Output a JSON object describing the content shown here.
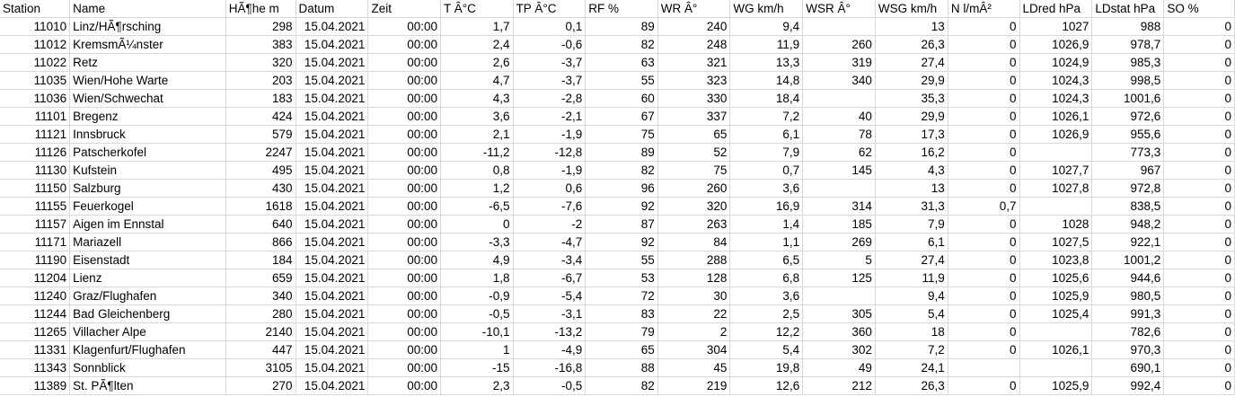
{
  "sheet": {
    "headers": [
      "Station",
      "Name",
      "HÃ¶he m",
      "Datum",
      "Zeit",
      "T Â°C",
      "TP Â°C",
      "RF %",
      "WR Â°",
      "WG km/h",
      "WSR Â°",
      "WSG km/h",
      "N l/mÂ²",
      "LDred hPa",
      "LDstat hPa",
      "SO %"
    ],
    "rows": [
      [
        "11010",
        "Linz/HÃ¶rsching",
        "298",
        "15.04.2021",
        "00:00",
        "1,7",
        "0,1",
        "89",
        "240",
        "9,4",
        "",
        "13",
        "0",
        "1027",
        "988",
        "0"
      ],
      [
        "11012",
        "KremsmÃ¼nster",
        "383",
        "15.04.2021",
        "00:00",
        "2,4",
        "-0,6",
        "82",
        "248",
        "11,9",
        "260",
        "26,3",
        "0",
        "1026,9",
        "978,7",
        "0"
      ],
      [
        "11022",
        "Retz",
        "320",
        "15.04.2021",
        "00:00",
        "2,6",
        "-3,7",
        "63",
        "321",
        "13,3",
        "319",
        "27,4",
        "0",
        "1024,9",
        "985,3",
        "0"
      ],
      [
        "11035",
        "Wien/Hohe Warte",
        "203",
        "15.04.2021",
        "00:00",
        "4,7",
        "-3,7",
        "55",
        "323",
        "14,8",
        "340",
        "29,9",
        "0",
        "1024,3",
        "998,5",
        "0"
      ],
      [
        "11036",
        "Wien/Schwechat",
        "183",
        "15.04.2021",
        "00:00",
        "4,3",
        "-2,8",
        "60",
        "330",
        "18,4",
        "",
        "35,3",
        "0",
        "1024,3",
        "1001,6",
        "0"
      ],
      [
        "11101",
        "Bregenz",
        "424",
        "15.04.2021",
        "00:00",
        "3,6",
        "-2,1",
        "67",
        "337",
        "7,2",
        "40",
        "29,9",
        "0",
        "1026,1",
        "972,6",
        "0"
      ],
      [
        "11121",
        "Innsbruck",
        "579",
        "15.04.2021",
        "00:00",
        "2,1",
        "-1,9",
        "75",
        "65",
        "6,1",
        "78",
        "17,3",
        "0",
        "1026,9",
        "955,6",
        "0"
      ],
      [
        "11126",
        "Patscherkofel",
        "2247",
        "15.04.2021",
        "00:00",
        "-11,2",
        "-12,8",
        "89",
        "52",
        "7,9",
        "62",
        "16,2",
        "0",
        "",
        "773,3",
        "0"
      ],
      [
        "11130",
        "Kufstein",
        "495",
        "15.04.2021",
        "00:00",
        "0,8",
        "-1,9",
        "82",
        "75",
        "0,7",
        "145",
        "4,3",
        "0",
        "1027,7",
        "967",
        "0"
      ],
      [
        "11150",
        "Salzburg",
        "430",
        "15.04.2021",
        "00:00",
        "1,2",
        "0,6",
        "96",
        "260",
        "3,6",
        "",
        "13",
        "0",
        "1027,8",
        "972,8",
        "0"
      ],
      [
        "11155",
        "Feuerkogel",
        "1618",
        "15.04.2021",
        "00:00",
        "-6,5",
        "-7,6",
        "92",
        "320",
        "16,9",
        "314",
        "31,3",
        "0,7",
        "",
        "838,5",
        "0"
      ],
      [
        "11157",
        "Aigen im Ennstal",
        "640",
        "15.04.2021",
        "00:00",
        "0",
        "-2",
        "87",
        "263",
        "1,4",
        "185",
        "7,9",
        "0",
        "1028",
        "948,2",
        "0"
      ],
      [
        "11171",
        "Mariazell",
        "866",
        "15.04.2021",
        "00:00",
        "-3,3",
        "-4,7",
        "92",
        "84",
        "1,1",
        "269",
        "6,1",
        "0",
        "1027,5",
        "922,1",
        "0"
      ],
      [
        "11190",
        "Eisenstadt",
        "184",
        "15.04.2021",
        "00:00",
        "4,9",
        "-3,4",
        "55",
        "288",
        "6,5",
        "5",
        "27,4",
        "0",
        "1023,8",
        "1001,2",
        "0"
      ],
      [
        "11204",
        "Lienz",
        "659",
        "15.04.2021",
        "00:00",
        "1,8",
        "-6,7",
        "53",
        "128",
        "6,8",
        "125",
        "11,9",
        "0",
        "1025,6",
        "944,6",
        "0"
      ],
      [
        "11240",
        "Graz/Flughafen",
        "340",
        "15.04.2021",
        "00:00",
        "-0,9",
        "-5,4",
        "72",
        "30",
        "3,6",
        "",
        "9,4",
        "0",
        "1025,9",
        "980,5",
        "0"
      ],
      [
        "11244",
        "Bad Gleichenberg",
        "280",
        "15.04.2021",
        "00:00",
        "-0,5",
        "-3,1",
        "83",
        "22",
        "2,5",
        "305",
        "5,4",
        "0",
        "1025,4",
        "991,3",
        "0"
      ],
      [
        "11265",
        "Villacher Alpe",
        "2140",
        "15.04.2021",
        "00:00",
        "-10,1",
        "-13,2",
        "79",
        "2",
        "12,2",
        "360",
        "18",
        "0",
        "",
        "782,6",
        "0"
      ],
      [
        "11331",
        "Klagenfurt/Flughafen",
        "447",
        "15.04.2021",
        "00:00",
        "1",
        "-4,9",
        "65",
        "304",
        "5,4",
        "302",
        "7,2",
        "0",
        "1026,1",
        "970,3",
        "0"
      ],
      [
        "11343",
        "Sonnblick",
        "3105",
        "15.04.2021",
        "00:00",
        "-15",
        "-16,8",
        "88",
        "45",
        "19,8",
        "49",
        "24,1",
        "",
        "",
        "690,1",
        "0"
      ],
      [
        "11389",
        "St. PÃ¶lten",
        "270",
        "15.04.2021",
        "00:00",
        "2,3",
        "-0,5",
        "82",
        "219",
        "12,6",
        "212",
        "26,3",
        "0",
        "1025,9",
        "992,4",
        "0"
      ]
    ]
  }
}
